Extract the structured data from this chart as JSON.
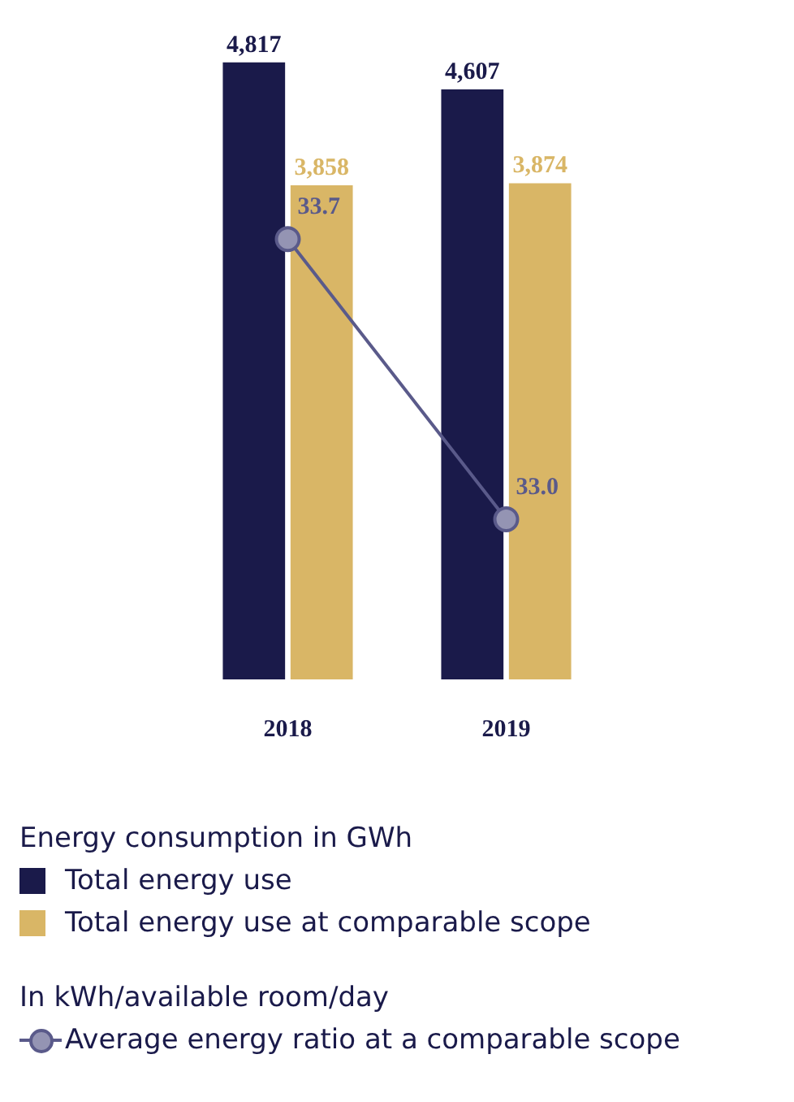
{
  "chart_data": {
    "type": "bar",
    "categories": [
      "2018",
      "2019"
    ],
    "annotations": [
      "Energy consumption in GWh",
      "In kWh/available room/day"
    ],
    "tick_labels": "x",
    "grid": false,
    "legend": "bottom",
    "marker": "circle",
    "line_style": "solid",
    "series": [
      {
        "name": "Total energy use",
        "color": "#1a1a4a",
        "values": [
          4817,
          4607
        ],
        "value_labels": [
          "4,817",
          "4,607"
        ]
      },
      {
        "name": "Total energy use at comparable scope",
        "color": "#d9b666",
        "values": [
          3858,
          3874
        ],
        "value_labels": [
          "3,858",
          "3,874"
        ]
      },
      {
        "name": "Average energy ratio at a comparable scope",
        "type": "line",
        "axis": "y2",
        "color": "#5a5a8a",
        "values": [
          33.7,
          33.0
        ],
        "value_labels": [
          "33.7",
          "33.0"
        ]
      }
    ]
  }
}
